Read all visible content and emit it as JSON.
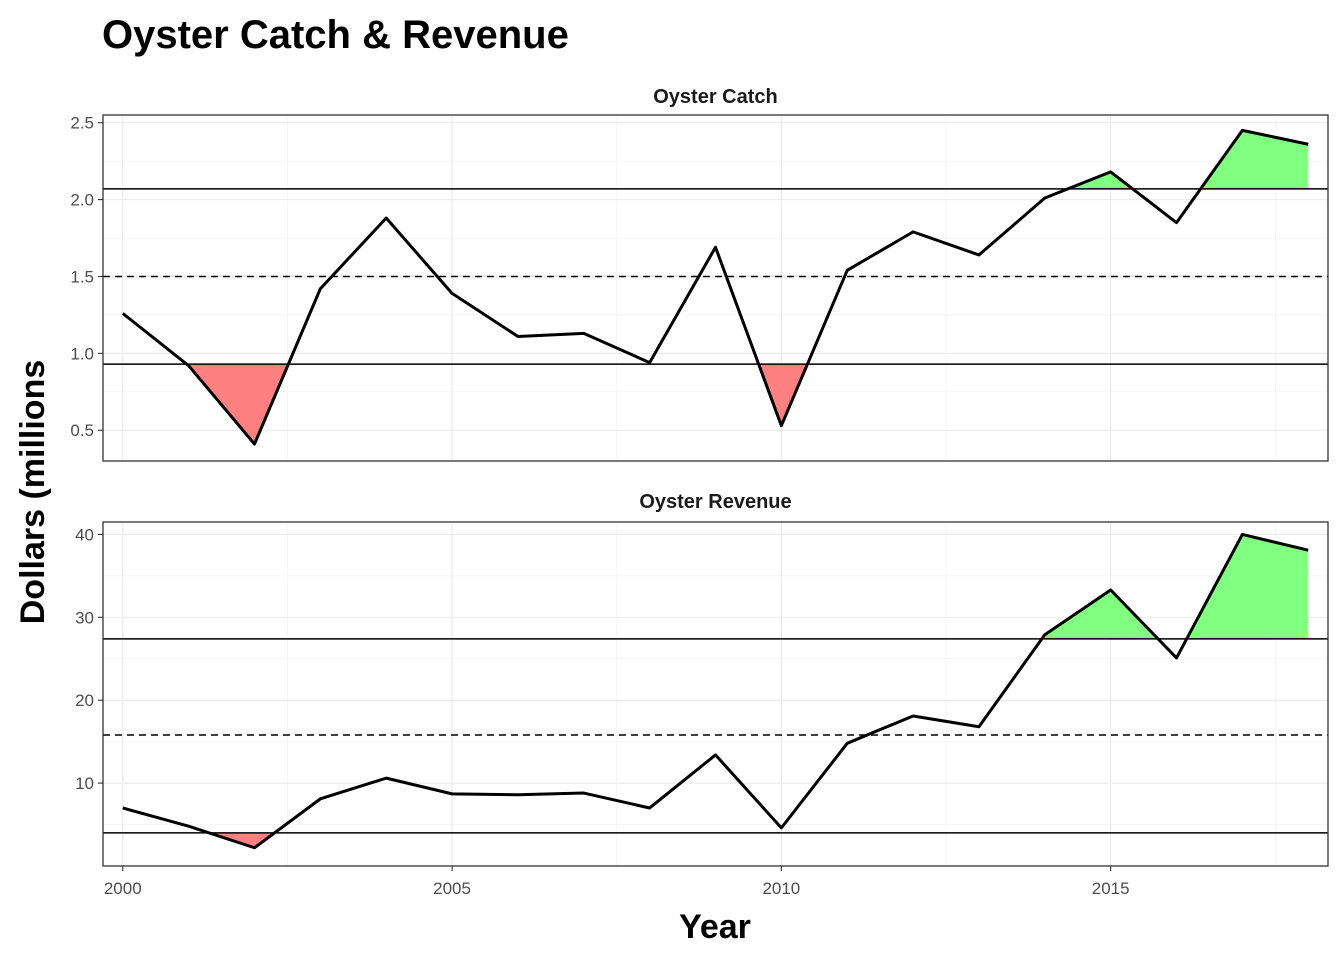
{
  "chart_data": {
    "type": "line",
    "title": "Oyster Catch & Revenue",
    "xlabel": "Year",
    "ylabel": "Dollars (millions",
    "x": [
      2000,
      2001,
      2002,
      2003,
      2004,
      2005,
      2006,
      2007,
      2008,
      2009,
      2010,
      2011,
      2012,
      2013,
      2014,
      2015,
      2016,
      2017,
      2018
    ],
    "xlim": [
      1999.7,
      2018.3
    ],
    "x_ticks": [
      2000,
      2005,
      2010,
      2015
    ],
    "x_tick_labels": [
      "2000",
      "2005",
      "2010",
      "2015"
    ],
    "below_color": "#ff8080",
    "above_color": "#80ff80",
    "line_color": "#000000",
    "grid": true,
    "legend": "none",
    "panels": [
      {
        "strip": "Oyster Catch",
        "values": [
          1.26,
          0.92,
          0.41,
          1.42,
          1.88,
          1.39,
          1.11,
          1.13,
          0.94,
          1.69,
          0.53,
          1.54,
          1.79,
          1.64,
          2.01,
          2.18,
          1.85,
          2.45,
          2.36
        ],
        "ylim": [
          0.3,
          2.55
        ],
        "y_ticks": [
          0.5,
          1.0,
          1.5,
          2.0,
          2.5
        ],
        "y_tick_labels": [
          "0.5",
          "1.0",
          "1.5",
          "2.0",
          "2.5"
        ],
        "upper_ref": 2.07,
        "mean_ref": 1.5,
        "lower_ref": 0.93
      },
      {
        "strip": "Oyster Revenue",
        "values": [
          7.0,
          4.8,
          2.2,
          8.1,
          10.6,
          8.7,
          8.6,
          8.8,
          7.0,
          13.4,
          4.6,
          14.8,
          18.1,
          16.8,
          27.9,
          33.3,
          25.1,
          40.0,
          38.1
        ],
        "ylim": [
          0.0,
          41.5
        ],
        "y_ticks": [
          10,
          20,
          30,
          40
        ],
        "y_tick_labels": [
          "10",
          "20",
          "30",
          "40"
        ],
        "upper_ref": 27.4,
        "mean_ref": 15.8,
        "lower_ref": 4.0
      }
    ]
  }
}
